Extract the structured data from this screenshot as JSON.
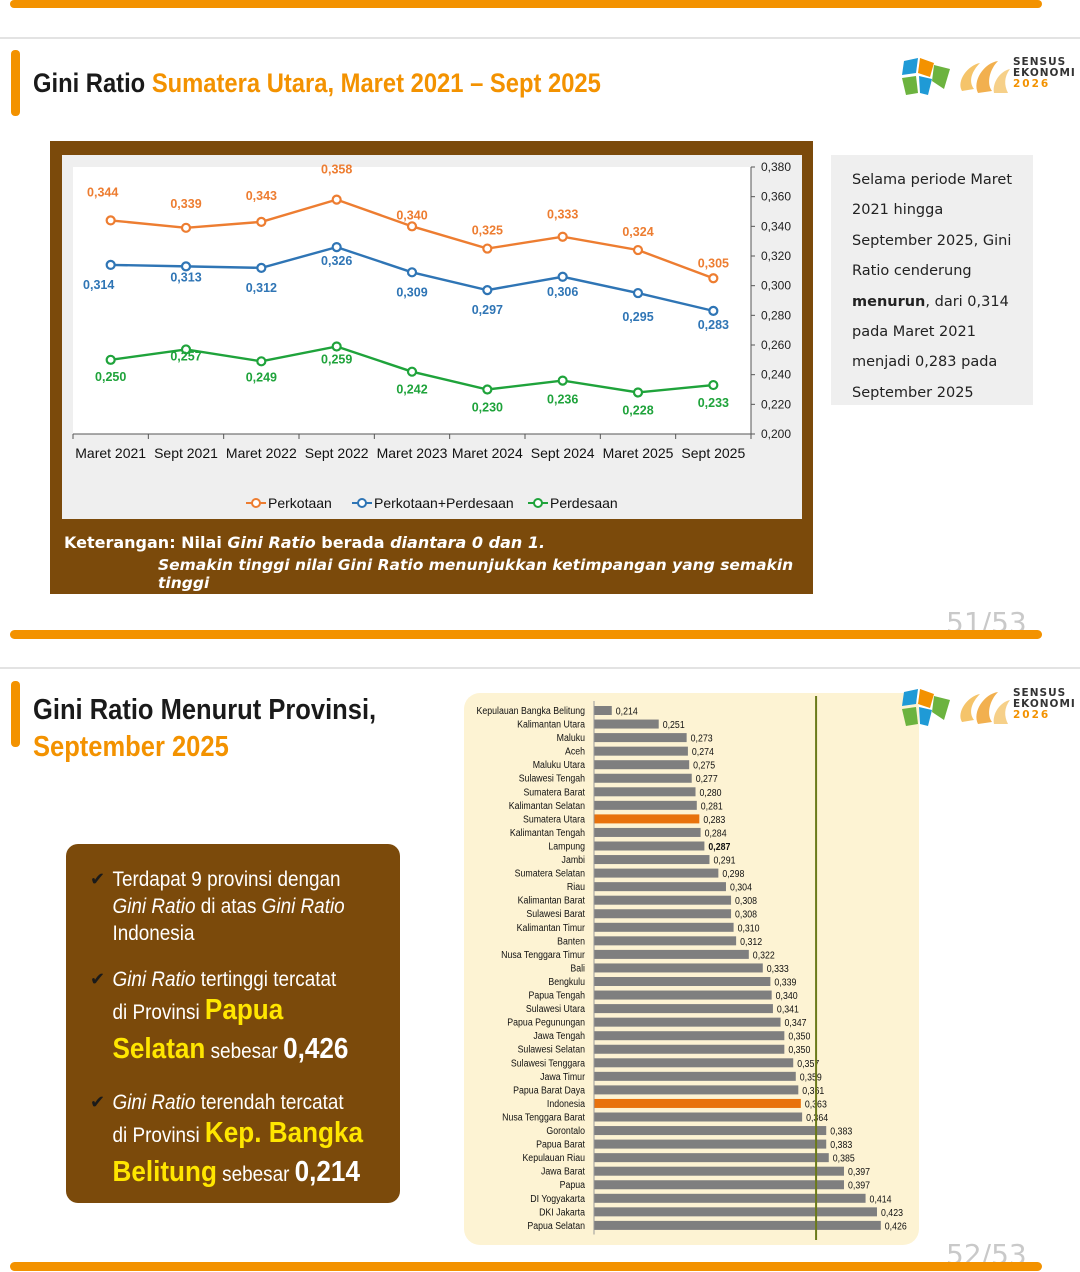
{
  "slide1": {
    "title_plain": "Gini Ratio",
    "title_highlight": "Sumatera Utara, Maret 2021 – Sept 2025",
    "logo": {
      "line1": "SENSUS",
      "line2": "EKONOMI",
      "line3": "2026"
    },
    "page_number": "51/53",
    "keterangan_bold": "Keterangan: Nilai ",
    "keterangan_italic": "Gini Ratio",
    "keterangan_mid": " berada ",
    "keterangan_range": "diantara 0 dan 1.",
    "keterangan_line2": "Semakin tinggi nilai Gini Ratio menunjukkan ketimpangan yang semakin tinggi",
    "side_text": {
      "part1": "Selama periode Maret 2021 hingga September 2025, Gini Ratio cenderung ",
      "bold": "menurun",
      "part2": ", dari 0,314 pada Maret 2021 menjadi 0,283 pada September 2025"
    }
  },
  "slide2": {
    "title_line1": "Gini Ratio Menurut Provinsi,",
    "title_line2": "September 2025",
    "logo": {
      "line1": "SENSUS",
      "line2": "EKONOMI",
      "line3": "2026"
    },
    "page_number": "52/53",
    "bullet1": {
      "a": "Terdapat 9 provinsi dengan",
      "b_italic1": "Gini Ratio",
      "b_mid": " di atas ",
      "b_italic2": "Gini Ratio",
      "c": "Indonesia"
    },
    "bullet2": {
      "italic": "Gini Ratio",
      "a": " tertinggi tercatat",
      "b": "di Provinsi ",
      "big1": "Papua",
      "big2": "Selatan",
      "c": " sebesar ",
      "num": "0,426"
    },
    "bullet3": {
      "italic": "Gini Ratio",
      "a": " terendah tercatat",
      "b": "di Provinsi ",
      "big1": "Kep. Bangka",
      "big2": "Belitung",
      "c": " sebesar ",
      "num": "0,214"
    }
  },
  "chart_data": [
    {
      "type": "line",
      "title": "Gini Ratio Sumatera Utara, Maret 2021 – Sept 2025",
      "categories": [
        "Maret 2021",
        "Sept 2021",
        "Maret 2022",
        "Sept 2022",
        "Maret 2023",
        "Maret 2024",
        "Sept 2024",
        "Maret 2025",
        "Sept 2025"
      ],
      "ylim": [
        0.2,
        0.38
      ],
      "yticks": [
        "0,200",
        "0,220",
        "0,240",
        "0,260",
        "0,280",
        "0,300",
        "0,320",
        "0,340",
        "0,360",
        "0,380"
      ],
      "y_axis_side": "right",
      "legend_position": "bottom",
      "series": [
        {
          "name": "Perkotaan",
          "color": "#ed7d31",
          "values": [
            0.344,
            0.339,
            0.343,
            0.358,
            0.34,
            0.325,
            0.333,
            0.324,
            0.305
          ],
          "labels": [
            "0,344",
            "0,339",
            "0,343",
            "0,358",
            "0,340",
            "0,325",
            "0,333",
            "0,324",
            "0,305"
          ]
        },
        {
          "name": "Perkotaan+Perdesaan",
          "color": "#2f75b5",
          "values": [
            0.314,
            0.313,
            0.312,
            0.326,
            0.309,
            0.297,
            0.306,
            0.295,
            0.283
          ],
          "labels": [
            "0,314",
            "0,313",
            "0,312",
            "0,326",
            "0,309",
            "0,297",
            "0,306",
            "0,295",
            "0,283"
          ]
        },
        {
          "name": "Perdesaan",
          "color": "#1fa33b",
          "values": [
            0.25,
            0.257,
            0.249,
            0.259,
            0.242,
            0.23,
            0.236,
            0.228,
            0.233
          ],
          "labels": [
            "0,250",
            "0,257",
            "0,249",
            "0,259",
            "0,242",
            "0,230",
            "0,236",
            "0,228",
            "0,233"
          ]
        }
      ]
    },
    {
      "type": "bar",
      "orientation": "horizontal",
      "title": "Gini Ratio Menurut Provinsi, September 2025",
      "xlim": [
        0.2,
        0.43
      ],
      "reference_line": 0.375,
      "highlight": [
        "Sumatera Utara",
        "Indonesia"
      ],
      "highlight_color": "#e8720c",
      "bar_color": "#7f7f7f",
      "categories": [
        "Kepulauan Bangka Belitung",
        "Kalimantan Utara",
        "Maluku",
        "Aceh",
        "Maluku Utara",
        "Sulawesi Tengah",
        "Sumatera Barat",
        "Kalimantan Selatan",
        "Sumatera Utara",
        "Kalimantan Tengah",
        "Lampung",
        "Jambi",
        "Sumatera Selatan",
        "Riau",
        "Kalimantan Barat",
        "Sulawesi Barat",
        "Kalimantan Timur",
        "Banten",
        "Nusa Tenggara Timur",
        "Bali",
        "Bengkulu",
        "Papua Tengah",
        "Sulawesi Utara",
        "Papua Pegunungan",
        "Jawa Tengah",
        "Sulawesi Selatan",
        "Sulawesi Tenggara",
        "Jawa Timur",
        "Papua Barat Daya",
        "Indonesia",
        "Nusa Tenggara Barat",
        "Gorontalo",
        "Papua Barat",
        "Kepulauan Riau",
        "Jawa Barat",
        "Papua",
        "DI Yogyakarta",
        "DKI Jakarta",
        "Papua Selatan"
      ],
      "values": [
        0.214,
        0.251,
        0.273,
        0.274,
        0.275,
        0.277,
        0.28,
        0.281,
        0.283,
        0.284,
        0.287,
        0.291,
        0.298,
        0.304,
        0.308,
        0.308,
        0.31,
        0.312,
        0.322,
        0.333,
        0.339,
        0.34,
        0.341,
        0.347,
        0.35,
        0.35,
        0.357,
        0.359,
        0.361,
        0.363,
        0.364,
        0.383,
        0.383,
        0.385,
        0.397,
        0.397,
        0.414,
        0.423,
        0.426
      ],
      "labels": [
        "0,214",
        "0,251",
        "0,273",
        "0,274",
        "0,275",
        "0,277",
        "0,280",
        "0,281",
        "0,283",
        "0,284",
        "0,287",
        "0,291",
        "0,298",
        "0,304",
        "0,308",
        "0,308",
        "0,310",
        "0,312",
        "0,322",
        "0,333",
        "0,339",
        "0,340",
        "0,341",
        "0,347",
        "0,350",
        "0,350",
        "0,357",
        "0,359",
        "0,361",
        "0,363",
        "0,364",
        "0,383",
        "0,383",
        "0,385",
        "0,397",
        "0,397",
        "0,414",
        "0,423",
        "0,426"
      ],
      "bold_labels": [
        "Lampung"
      ]
    }
  ]
}
